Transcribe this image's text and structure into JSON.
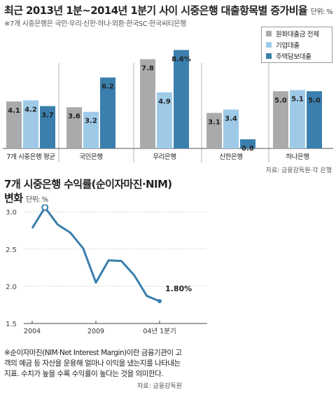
{
  "chart_data": [
    {
      "type": "bar",
      "title": "최근 2013년 1분~2014년 1분기 사이 시중은행 대출항목별 증가비율",
      "unit": "단위: %",
      "note": "※7개 시중은행은 국민·우리·신한·하나·외환·한국SC·한국씨티은행",
      "source": "자료: 금융감독원·각 은행",
      "legend_position": "top-right",
      "categories": [
        "7개 시중은행 평균",
        "국민은행",
        "우리은행",
        "신한은행",
        "하나은행"
      ],
      "series": [
        {
          "name": "원화대출금 전체",
          "color": "#a9aaac",
          "values": [
            4.1,
            3.6,
            7.8,
            3.1,
            5.0
          ],
          "labels": [
            "4.1",
            "3.6",
            "7.8",
            "3.1",
            "5.0"
          ]
        },
        {
          "name": "기업대출",
          "color": "#9ecae8",
          "values": [
            4.2,
            3.2,
            4.9,
            3.4,
            5.1
          ],
          "labels": [
            "4.2",
            "3.2",
            "4.9",
            "3.4",
            "5.1"
          ]
        },
        {
          "name": "주택담보대출",
          "color": "#3a7fad",
          "values": [
            3.7,
            6.2,
            8.6,
            0.8,
            5.0
          ],
          "labels": [
            "3.7",
            "6.2",
            "8.6%",
            "0.8",
            "5.0"
          ]
        }
      ],
      "ylim": [
        0,
        9.3
      ]
    },
    {
      "type": "line",
      "title_line1": "7개 시중은행 수익률(순이자마진·NIM)",
      "title_line2": "변화",
      "unit": "단위: %",
      "x_tick_labels": [
        "2004",
        "2009",
        "04년 1분기"
      ],
      "y_ticks": [
        3.0,
        2.5,
        2.0,
        1.5
      ],
      "y_tick_labels": [
        "3.0",
        "2.5",
        "2.0",
        "1.5"
      ],
      "ylim": [
        1.5,
        3.1
      ],
      "series": [
        {
          "name": "",
          "color": "#3a7fad",
          "values": [
            2.78,
            3.06,
            2.83,
            2.72,
            2.51,
            2.05,
            2.35,
            2.34,
            2.15,
            1.87,
            1.8
          ]
        }
      ],
      "annotations": [
        {
          "point_index": 1,
          "text": "3.06"
        },
        {
          "point_index": 10,
          "text": "1.80%"
        }
      ],
      "footnote": "※순이자마진(NIM·Net Interest Margin)이란 금융기관이 고객의 예금 등 자산을 운용해 얼마나 이익을 냈는지를 나타내는 지표. 수치가 높을 수록 수익률이 높다는 것을 의미한다.",
      "source": "자료: 금융감독원"
    }
  ]
}
